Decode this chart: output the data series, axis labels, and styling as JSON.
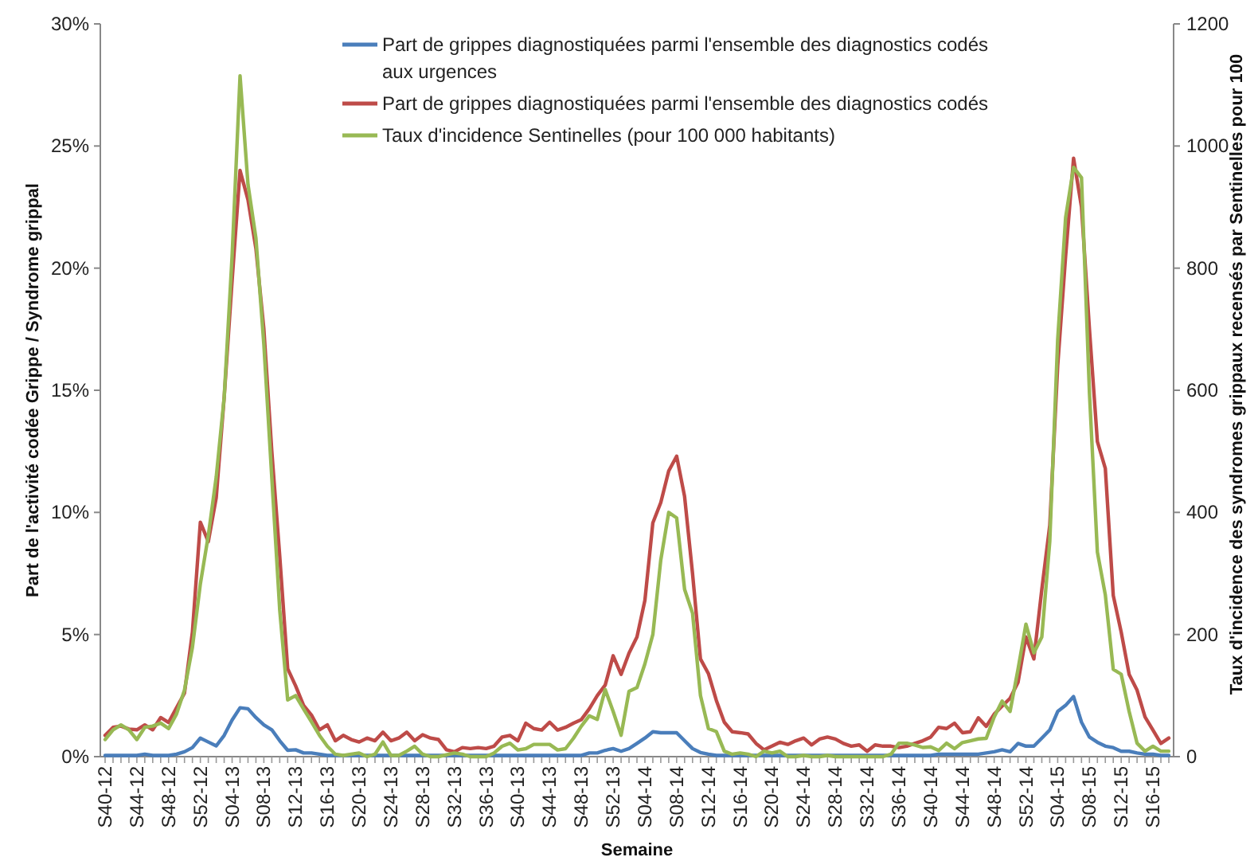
{
  "chart_data": {
    "type": "line",
    "xlabel": "Semaine",
    "ylabel": "Part de l'activité codée Grippe / Syndrome grippal",
    "y2label": "Taux d'incidence des syndromes grippaux recensés par Sentinelles pour 100",
    "legend": "top",
    "grid": false,
    "categories": [
      "S40-12",
      null,
      null,
      null,
      "S44-12",
      null,
      null,
      null,
      "S48-12",
      null,
      null,
      null,
      "S52-12",
      null,
      null,
      null,
      "S04-13",
      null,
      null,
      null,
      "S08-13",
      null,
      null,
      null,
      "S12-13",
      null,
      null,
      null,
      "S16-13",
      null,
      null,
      null,
      "S20-13",
      null,
      null,
      null,
      "S24-13",
      null,
      null,
      null,
      "S28-13",
      null,
      null,
      null,
      "S32-13",
      null,
      null,
      null,
      "S36-13",
      null,
      null,
      null,
      "S40-13",
      null,
      null,
      null,
      "S44-13",
      null,
      null,
      null,
      "S48-13",
      null,
      null,
      null,
      "S52-13",
      null,
      null,
      null,
      "S04-14",
      null,
      null,
      null,
      "S08-14",
      null,
      null,
      null,
      "S12-14",
      null,
      null,
      null,
      "S16-14",
      null,
      null,
      null,
      "S20-14",
      null,
      null,
      null,
      "S24-14",
      null,
      null,
      null,
      "S28-14",
      null,
      null,
      null,
      "S32-14",
      null,
      null,
      null,
      "S36-14",
      null,
      null,
      null,
      "S40-14",
      null,
      null,
      null,
      "S44-14",
      null,
      null,
      null,
      "S48-14",
      null,
      null,
      null,
      "S52-14",
      null,
      null,
      null,
      "S04-15",
      null,
      null,
      null,
      "S08-15",
      null,
      null,
      null,
      "S12-15",
      null,
      null,
      null,
      "S16-15",
      null,
      null
    ],
    "ylim": [
      0,
      30
    ],
    "yticks": [
      {
        "value": 0,
        "label": "0%"
      },
      {
        "value": 5,
        "label": "5%"
      },
      {
        "value": 10,
        "label": "10%"
      },
      {
        "value": 15,
        "label": "15%"
      },
      {
        "value": 20,
        "label": "20%"
      },
      {
        "value": 25,
        "label": "25%"
      },
      {
        "value": 30,
        "label": "30%"
      }
    ],
    "y2lim": [
      0,
      1200
    ],
    "y2ticks": [
      0,
      200,
      400,
      600,
      800,
      1000,
      1200
    ],
    "series": [
      {
        "name": "Part de grippes diagnostiquées parmi l'ensemble des diagnostics codés aux urgences",
        "color": "#4a7ebb",
        "values": [
          0.05,
          0.05,
          0.05,
          0.05,
          0.05,
          0.1,
          0.05,
          0.05,
          0.05,
          0.1,
          0.2,
          0.37,
          0.76,
          0.6,
          0.44,
          0.87,
          1.5,
          2.0,
          1.96,
          1.6,
          1.3,
          1.1,
          0.65,
          0.26,
          0.28,
          0.15,
          0.15,
          0.1,
          0.05,
          0.05,
          0.05,
          0.05,
          0.05,
          0.05,
          0.05,
          0.05,
          0.05,
          0.05,
          0.05,
          0.05,
          0.05,
          0.05,
          0.05,
          0.05,
          0.05,
          0.05,
          0.05,
          0.05,
          0.05,
          0.05,
          0.05,
          0.05,
          0.05,
          0.05,
          0.05,
          0.05,
          0.05,
          0.05,
          0.05,
          0.05,
          0.05,
          0.15,
          0.15,
          0.26,
          0.33,
          0.22,
          0.33,
          0.54,
          0.76,
          1.02,
          0.98,
          0.98,
          0.98,
          0.65,
          0.33,
          0.17,
          0.1,
          0.05,
          0.05,
          0.05,
          0.05,
          0.05,
          0.05,
          0.05,
          0.05,
          0.05,
          0.05,
          0.05,
          0.05,
          0.05,
          0.05,
          0.05,
          0.05,
          0.05,
          0.05,
          0.05,
          0.05,
          0.05,
          0.05,
          0.05,
          0.05,
          0.05,
          0.05,
          0.05,
          0.05,
          0.1,
          0.1,
          0.1,
          0.1,
          0.1,
          0.1,
          0.15,
          0.2,
          0.28,
          0.2,
          0.54,
          0.43,
          0.43,
          0.76,
          1.09,
          1.85,
          2.1,
          2.46,
          1.41,
          0.8,
          0.59,
          0.43,
          0.37,
          0.22,
          0.22,
          0.15,
          0.1,
          0.1,
          0.05,
          0.05
        ]
      },
      {
        "name": "Part de grippes diagnostiquées parmi l'ensemble des diagnostics codés",
        "color": "#be4b48",
        "values": [
          0.87,
          1.2,
          1.25,
          1.13,
          1.1,
          1.3,
          1.1,
          1.6,
          1.4,
          2.0,
          2.6,
          5.1,
          9.6,
          8.8,
          10.6,
          14.7,
          19.5,
          24.0,
          22.8,
          20.8,
          17.5,
          12.5,
          8.2,
          3.6,
          2.9,
          2.1,
          1.7,
          1.1,
          1.3,
          0.65,
          0.87,
          0.7,
          0.6,
          0.76,
          0.65,
          1.0,
          0.65,
          0.76,
          1.0,
          0.65,
          0.9,
          0.76,
          0.7,
          0.28,
          0.2,
          0.37,
          0.33,
          0.37,
          0.33,
          0.43,
          0.8,
          0.87,
          0.65,
          1.37,
          1.15,
          1.09,
          1.41,
          1.09,
          1.2,
          1.37,
          1.52,
          1.96,
          2.5,
          2.93,
          4.13,
          3.37,
          4.24,
          4.9,
          6.4,
          9.57,
          10.4,
          11.7,
          12.3,
          10.65,
          7.5,
          4.0,
          3.4,
          2.3,
          1.41,
          1.02,
          0.98,
          0.93,
          0.54,
          0.28,
          0.43,
          0.59,
          0.5,
          0.65,
          0.76,
          0.48,
          0.72,
          0.8,
          0.72,
          0.54,
          0.43,
          0.48,
          0.22,
          0.48,
          0.43,
          0.43,
          0.37,
          0.43,
          0.54,
          0.65,
          0.8,
          1.2,
          1.15,
          1.37,
          0.98,
          1.02,
          1.59,
          1.24,
          1.74,
          2.07,
          2.39,
          3.04,
          4.9,
          4.0,
          6.85,
          9.46,
          16.0,
          20.5,
          24.5,
          22.5,
          17.5,
          12.9,
          11.8,
          6.6,
          5.1,
          3.37,
          2.72,
          1.63,
          1.09,
          0.54,
          0.76
        ]
      },
      {
        "name": "Taux d'incidence Sentinelles (pour 100 000 habitants)",
        "color": "#98b954",
        "axis": "y2",
        "values": [
          28,
          44,
          52,
          44,
          28,
          48,
          50,
          55,
          46,
          70,
          109,
          179,
          283,
          362,
          458,
          588,
          820,
          1115,
          937,
          849,
          675,
          457,
          240,
          93,
          100,
          78,
          57,
          35,
          17,
          4,
          2,
          4,
          6,
          0,
          4,
          24,
          2,
          2,
          9,
          17,
          4,
          0,
          0,
          3,
          6,
          4,
          0,
          0,
          0,
          6,
          17,
          22,
          11,
          13,
          20,
          20,
          20,
          11,
          13,
          30,
          50,
          67,
          61,
          110,
          74,
          35,
          107,
          113,
          152,
          200,
          322,
          400,
          391,
          274,
          235,
          100,
          46,
          41,
          9,
          4,
          6,
          4,
          0,
          9,
          6,
          9,
          0,
          0,
          2,
          0,
          0,
          2,
          0,
          0,
          0,
          0,
          0,
          0,
          0,
          4,
          22,
          22,
          19,
          15,
          16,
          10,
          22,
          13,
          23,
          26,
          29,
          30,
          65,
          91,
          74,
          143,
          217,
          170,
          196,
          352,
          683,
          883,
          965,
          948,
          596,
          335,
          265,
          143,
          135,
          74,
          22,
          9,
          17,
          9,
          9
        ]
      }
    ]
  }
}
